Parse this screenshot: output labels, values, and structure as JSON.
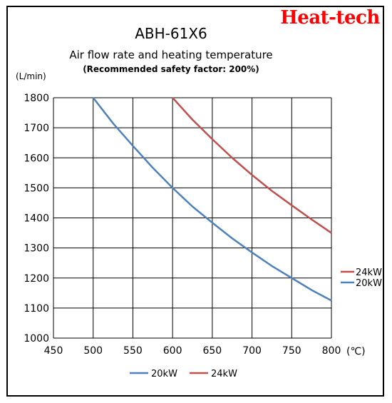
{
  "brand": "Heat-tech",
  "chart_data": {
    "type": "line",
    "title": "ABH-61X6",
    "subtitle": "Air flow rate and heating temperature",
    "note": "(Recommended safety factor: 200%)",
    "ylabel": "(L/min)",
    "xlabel": "(℃)",
    "xlim": [
      450,
      800
    ],
    "ylim": [
      1000,
      1800
    ],
    "xticks": [
      450,
      500,
      550,
      600,
      650,
      700,
      750,
      800
    ],
    "yticks": [
      1000,
      1100,
      1200,
      1300,
      1400,
      1500,
      1600,
      1700,
      1800
    ],
    "grid": true,
    "legend_position": "bottom",
    "series": [
      {
        "name": "20kW",
        "color": "#4f81bd",
        "x": [
          500,
          525,
          550,
          575,
          600,
          625,
          650,
          675,
          700,
          725,
          750,
          775,
          800
        ],
        "y": [
          1800,
          1715,
          1640,
          1567,
          1500,
          1438,
          1384,
          1332,
          1285,
          1240,
          1200,
          1160,
          1125
        ]
      },
      {
        "name": "24kW",
        "color": "#c0504d",
        "x": [
          600,
          625,
          650,
          675,
          700,
          725,
          750,
          775,
          800
        ],
        "y": [
          1800,
          1727,
          1662,
          1600,
          1543,
          1490,
          1442,
          1395,
          1350
        ]
      }
    ]
  }
}
